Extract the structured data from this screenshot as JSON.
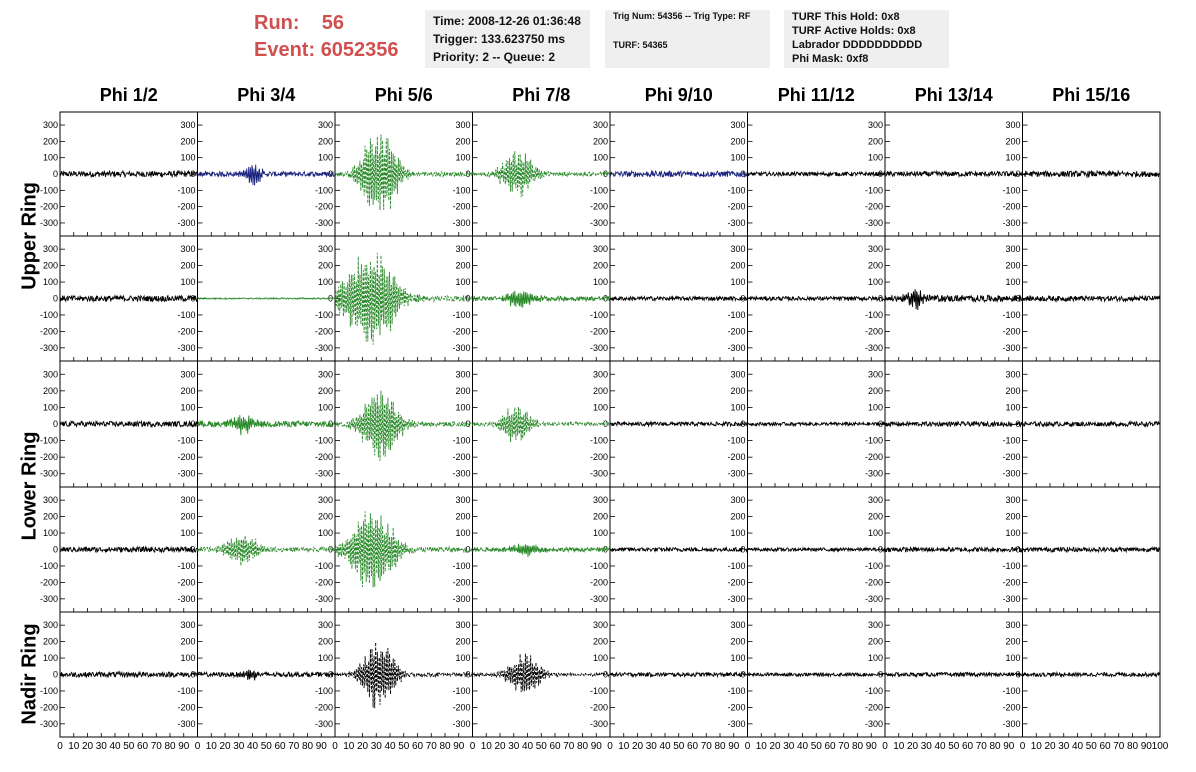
{
  "header": {
    "run_label": "Run:",
    "run_value": "56",
    "event_label": "Event:",
    "event_value": "6052356",
    "time_line": "Time: 2008-12-26 01:36:48",
    "trigger_line": "Trigger: 133.623750 ms",
    "priority_line": "Priority: 2 -- Queue: 2",
    "trig_num_line": "Trig Num: 54356 -- Trig Type: RF",
    "turf_line": "TURF: 54365",
    "turf_hold_line": "TURF This Hold: 0x8",
    "turf_active_line": "TURF Active Holds: 0x8",
    "labrador_line": "Labrador DDDDDDDDDD",
    "phi_mask_line": "Phi Mask: 0xf8"
  },
  "chart_data": {
    "type": "line",
    "columns": [
      "Phi 1/2",
      "Phi 3/4",
      "Phi 5/6",
      "Phi 7/8",
      "Phi 9/10",
      "Phi 11/12",
      "Phi 13/14",
      "Phi 15/16"
    ],
    "ring_labels": [
      "Upper Ring",
      "Lower Ring",
      "Nadir Ring"
    ],
    "rows": [
      "upper-a",
      "upper-b",
      "lower-a",
      "lower-b",
      "nadir"
    ],
    "x_ticks": [
      0,
      10,
      20,
      30,
      40,
      50,
      60,
      70,
      80,
      90,
      100
    ],
    "xlim": [
      0,
      100
    ],
    "y_ticks": [
      -300,
      -200,
      -100,
      0,
      100,
      200,
      300
    ],
    "ylim": [
      -380,
      380
    ],
    "colors": {
      "normal": "#000000",
      "triggered": "#2a8a2a",
      "masked": "#1a237e"
    },
    "panels": [
      [
        {
          "style": "normal",
          "noise": 18
        },
        {
          "style": "masked",
          "noise": 15,
          "burst": {
            "center": 40,
            "width": 5,
            "amp": 70
          }
        },
        {
          "style": "triggered",
          "dashed": true,
          "noise": 15,
          "burst": {
            "center": 32,
            "width": 10,
            "amp": 300
          }
        },
        {
          "style": "triggered",
          "dashed": true,
          "noise": 12,
          "burst": {
            "center": 33,
            "width": 9,
            "amp": 160
          }
        },
        {
          "style": "masked",
          "noise": 18
        },
        {
          "style": "normal",
          "noise": 12
        },
        {
          "style": "normal",
          "noise": 16
        },
        {
          "style": "normal",
          "noise": 18
        }
      ],
      [
        {
          "style": "normal",
          "noise": 18
        },
        {
          "style": "triggered",
          "noise": 4
        },
        {
          "style": "triggered",
          "dashed": true,
          "noise": 18,
          "burst": {
            "center": 26,
            "width": 14,
            "amp": 330
          }
        },
        {
          "style": "triggered",
          "noise": 14,
          "burst": {
            "center": 35,
            "width": 8,
            "amp": 60
          }
        },
        {
          "style": "normal",
          "noise": 12
        },
        {
          "style": "normal",
          "noise": 12
        },
        {
          "style": "normal",
          "noise": 20,
          "burst": {
            "center": 22,
            "width": 4,
            "amp": 80
          }
        },
        {
          "style": "normal",
          "noise": 16
        }
      ],
      [
        {
          "style": "normal",
          "noise": 16
        },
        {
          "style": "triggered",
          "noise": 18,
          "burst": {
            "center": 33,
            "width": 6,
            "amp": 60
          }
        },
        {
          "style": "triggered",
          "dashed": true,
          "noise": 16,
          "burst": {
            "center": 33,
            "width": 10,
            "amp": 250
          }
        },
        {
          "style": "triggered",
          "dashed": true,
          "noise": 12,
          "burst": {
            "center": 32,
            "width": 8,
            "amp": 130
          }
        },
        {
          "style": "normal",
          "noise": 12
        },
        {
          "style": "normal",
          "noise": 10
        },
        {
          "style": "normal",
          "noise": 14
        },
        {
          "style": "normal",
          "noise": 14
        }
      ],
      [
        {
          "style": "normal",
          "noise": 16
        },
        {
          "style": "triggered",
          "dashed": true,
          "noise": 14,
          "burst": {
            "center": 32,
            "width": 9,
            "amp": 110
          }
        },
        {
          "style": "triggered",
          "dashed": true,
          "noise": 16,
          "burst": {
            "center": 27,
            "width": 12,
            "amp": 290
          }
        },
        {
          "style": "triggered",
          "noise": 12,
          "burst": {
            "center": 38,
            "width": 8,
            "amp": 40
          }
        },
        {
          "style": "normal",
          "noise": 12
        },
        {
          "style": "normal",
          "noise": 10
        },
        {
          "style": "normal",
          "noise": 14
        },
        {
          "style": "normal",
          "noise": 14
        }
      ],
      [
        {
          "style": "normal",
          "noise": 16
        },
        {
          "style": "normal",
          "noise": 14,
          "burst": {
            "center": 38,
            "width": 4,
            "amp": 40
          }
        },
        {
          "style": "normal",
          "dashed": true,
          "noise": 12,
          "burst": {
            "center": 32,
            "width": 9,
            "amp": 230
          }
        },
        {
          "style": "normal",
          "dashed": true,
          "noise": 10,
          "burst": {
            "center": 38,
            "width": 9,
            "amp": 140
          }
        },
        {
          "style": "normal",
          "noise": 12
        },
        {
          "style": "normal",
          "noise": 10
        },
        {
          "style": "normal",
          "noise": 12
        },
        {
          "style": "normal",
          "noise": 12
        }
      ]
    ]
  }
}
